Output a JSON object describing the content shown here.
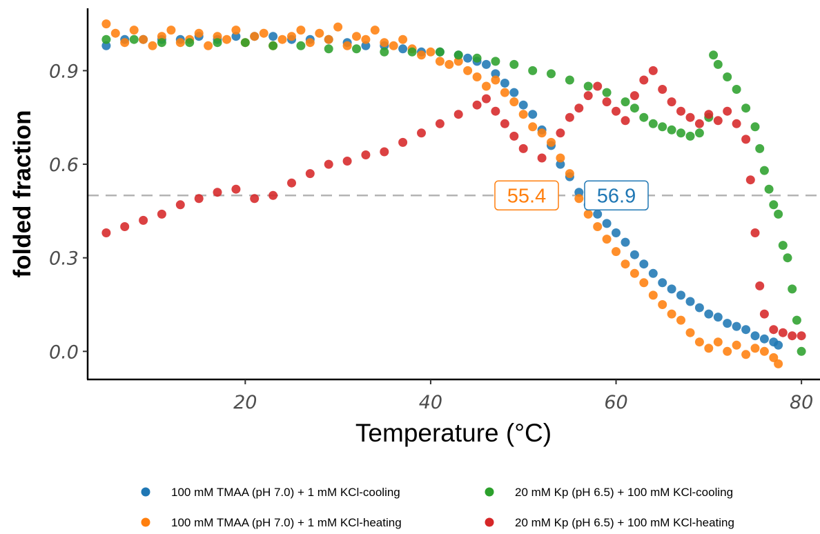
{
  "chart_data": {
    "type": "scatter",
    "xlabel": "Temperature (°C)",
    "ylabel": "folded fraction",
    "xlim": [
      3,
      82
    ],
    "ylim": [
      -0.09,
      1.1
    ],
    "xticks": [
      "20",
      "40",
      "60",
      "80"
    ],
    "yticks": [
      "0.0",
      "0.3",
      "0.6",
      "0.9"
    ],
    "xtick_values": [
      20,
      40,
      60,
      80
    ],
    "ytick_values": [
      0.0,
      0.3,
      0.6,
      0.9
    ],
    "reference_line": {
      "y": 0.5,
      "style": "dashed",
      "color": "#b3b3b3"
    },
    "annotations": [
      {
        "text": "55.4",
        "x": 55.4,
        "y": 0.5,
        "color": "#ff7f0e"
      },
      {
        "text": "56.9",
        "x": 56.9,
        "y": 0.5,
        "color": "#1f77b4"
      }
    ],
    "legend_position": "bottom",
    "series": [
      {
        "name": "100 mM TMAA (pH 7.0) + 1 mM KCl-cooling",
        "color": "#1f77b4",
        "points": [
          [
            5,
            0.98
          ],
          [
            7,
            1.0
          ],
          [
            9,
            1.0
          ],
          [
            11,
            1.0
          ],
          [
            13,
            1.0
          ],
          [
            15,
            1.01
          ],
          [
            17,
            1.0
          ],
          [
            19,
            1.01
          ],
          [
            21,
            1.01
          ],
          [
            23,
            1.01
          ],
          [
            25,
            1.0
          ],
          [
            27,
            1.0
          ],
          [
            29,
            1.0
          ],
          [
            31,
            0.99
          ],
          [
            33,
            0.98
          ],
          [
            35,
            0.98
          ],
          [
            37,
            0.97
          ],
          [
            39,
            0.96
          ],
          [
            41,
            0.96
          ],
          [
            43,
            0.95
          ],
          [
            44,
            0.94
          ],
          [
            45,
            0.93
          ],
          [
            46,
            0.92
          ],
          [
            47,
            0.89
          ],
          [
            48,
            0.86
          ],
          [
            49,
            0.83
          ],
          [
            50,
            0.79
          ],
          [
            51,
            0.76
          ],
          [
            52,
            0.71
          ],
          [
            53,
            0.66
          ],
          [
            54,
            0.6
          ],
          [
            55,
            0.56
          ],
          [
            56,
            0.51
          ],
          [
            57,
            0.47
          ],
          [
            58,
            0.44
          ],
          [
            59,
            0.41
          ],
          [
            60,
            0.38
          ],
          [
            61,
            0.35
          ],
          [
            62,
            0.31
          ],
          [
            63,
            0.28
          ],
          [
            64,
            0.25
          ],
          [
            65,
            0.22
          ],
          [
            66,
            0.2
          ],
          [
            67,
            0.18
          ],
          [
            68,
            0.16
          ],
          [
            69,
            0.14
          ],
          [
            70,
            0.12
          ],
          [
            71,
            0.11
          ],
          [
            72,
            0.09
          ],
          [
            73,
            0.08
          ],
          [
            74,
            0.07
          ],
          [
            75,
            0.05
          ],
          [
            76,
            0.04
          ],
          [
            77,
            0.03
          ],
          [
            77.5,
            0.02
          ]
        ]
      },
      {
        "name": "100 mM TMAA (pH 7.0) + 1 mM KCl-heating",
        "color": "#ff7f0e",
        "points": [
          [
            5,
            1.05
          ],
          [
            6,
            1.02
          ],
          [
            7,
            0.99
          ],
          [
            8,
            1.03
          ],
          [
            9,
            1.0
          ],
          [
            10,
            0.98
          ],
          [
            11,
            1.01
          ],
          [
            12,
            1.03
          ],
          [
            13,
            0.99
          ],
          [
            14,
            1.0
          ],
          [
            15,
            1.02
          ],
          [
            16,
            0.98
          ],
          [
            17,
            1.01
          ],
          [
            18,
            1.0
          ],
          [
            19,
            1.03
          ],
          [
            20,
            0.99
          ],
          [
            21,
            1.01
          ],
          [
            22,
            1.02
          ],
          [
            23,
            0.98
          ],
          [
            24,
            1.0
          ],
          [
            25,
            1.01
          ],
          [
            26,
            1.03
          ],
          [
            27,
            0.99
          ],
          [
            28,
            1.02
          ],
          [
            29,
            1.0
          ],
          [
            30,
            1.04
          ],
          [
            31,
            0.98
          ],
          [
            32,
            1.01
          ],
          [
            33,
            1.0
          ],
          [
            34,
            1.03
          ],
          [
            35,
            0.99
          ],
          [
            36,
            0.98
          ],
          [
            37,
            1.0
          ],
          [
            38,
            0.97
          ],
          [
            39,
            0.95
          ],
          [
            40,
            0.96
          ],
          [
            41,
            0.93
          ],
          [
            42,
            0.92
          ],
          [
            43,
            0.93
          ],
          [
            44,
            0.9
          ],
          [
            45,
            0.88
          ],
          [
            46,
            0.85
          ],
          [
            47,
            0.87
          ],
          [
            48,
            0.83
          ],
          [
            49,
            0.8
          ],
          [
            50,
            0.76
          ],
          [
            51,
            0.72
          ],
          [
            52,
            0.7
          ],
          [
            53,
            0.67
          ],
          [
            54,
            0.62
          ],
          [
            55,
            0.57
          ],
          [
            56,
            0.49
          ],
          [
            57,
            0.44
          ],
          [
            58,
            0.4
          ],
          [
            59,
            0.36
          ],
          [
            60,
            0.32
          ],
          [
            61,
            0.28
          ],
          [
            62,
            0.25
          ],
          [
            63,
            0.22
          ],
          [
            64,
            0.18
          ],
          [
            65,
            0.15
          ],
          [
            66,
            0.12
          ],
          [
            67,
            0.1
          ],
          [
            68,
            0.06
          ],
          [
            69,
            0.03
          ],
          [
            70,
            0.01
          ],
          [
            71,
            0.03
          ],
          [
            72,
            0.0
          ],
          [
            73,
            0.02
          ],
          [
            74,
            -0.01
          ],
          [
            75,
            0.01
          ],
          [
            76,
            0.0
          ],
          [
            77,
            -0.02
          ],
          [
            77.5,
            -0.04
          ]
        ]
      },
      {
        "name": "20 mM Kp (pH 6.5) + 100 mM KCl-cooling",
        "color": "#2ca02c",
        "points": [
          [
            5,
            1.0
          ],
          [
            8,
            1.0
          ],
          [
            11,
            0.99
          ],
          [
            14,
            0.99
          ],
          [
            17,
            0.99
          ],
          [
            20,
            0.99
          ],
          [
            23,
            0.98
          ],
          [
            26,
            0.98
          ],
          [
            29,
            0.97
          ],
          [
            32,
            0.97
          ],
          [
            35,
            0.96
          ],
          [
            38,
            0.96
          ],
          [
            41,
            0.96
          ],
          [
            43,
            0.95
          ],
          [
            45,
            0.94
          ],
          [
            47,
            0.93
          ],
          [
            49,
            0.92
          ],
          [
            51,
            0.9
          ],
          [
            53,
            0.89
          ],
          [
            55,
            0.87
          ],
          [
            57,
            0.85
          ],
          [
            59,
            0.83
          ],
          [
            61,
            0.8
          ],
          [
            62,
            0.78
          ],
          [
            63,
            0.75
          ],
          [
            64,
            0.73
          ],
          [
            65,
            0.72
          ],
          [
            66,
            0.71
          ],
          [
            67,
            0.7
          ],
          [
            68,
            0.69
          ],
          [
            69,
            0.7
          ],
          [
            70,
            0.75
          ],
          [
            70.5,
            0.95
          ],
          [
            71,
            0.92
          ],
          [
            72,
            0.88
          ],
          [
            73,
            0.84
          ],
          [
            74,
            0.78
          ],
          [
            75,
            0.72
          ],
          [
            75.5,
            0.65
          ],
          [
            76,
            0.58
          ],
          [
            76.5,
            0.52
          ],
          [
            77,
            0.47
          ],
          [
            77.5,
            0.44
          ],
          [
            78,
            0.34
          ],
          [
            78.5,
            0.3
          ],
          [
            79,
            0.2
          ],
          [
            79.5,
            0.1
          ],
          [
            80,
            0.0
          ]
        ]
      },
      {
        "name": "20 mM Kp (pH 6.5) + 100 mM KCl-heating",
        "color": "#d62728",
        "points": [
          [
            5,
            0.38
          ],
          [
            7,
            0.4
          ],
          [
            9,
            0.42
          ],
          [
            11,
            0.44
          ],
          [
            13,
            0.47
          ],
          [
            15,
            0.49
          ],
          [
            17,
            0.51
          ],
          [
            19,
            0.52
          ],
          [
            21,
            0.49
          ],
          [
            23,
            0.5
          ],
          [
            25,
            0.54
          ],
          [
            27,
            0.57
          ],
          [
            29,
            0.6
          ],
          [
            31,
            0.61
          ],
          [
            33,
            0.63
          ],
          [
            35,
            0.64
          ],
          [
            37,
            0.67
          ],
          [
            39,
            0.7
          ],
          [
            41,
            0.73
          ],
          [
            43,
            0.76
          ],
          [
            45,
            0.79
          ],
          [
            46,
            0.81
          ],
          [
            47,
            0.77
          ],
          [
            48,
            0.73
          ],
          [
            49,
            0.69
          ],
          [
            50,
            0.65
          ],
          [
            52,
            0.62
          ],
          [
            54,
            0.7
          ],
          [
            55,
            0.75
          ],
          [
            56,
            0.78
          ],
          [
            57,
            0.82
          ],
          [
            58,
            0.85
          ],
          [
            59,
            0.8
          ],
          [
            60,
            0.77
          ],
          [
            61,
            0.74
          ],
          [
            62,
            0.82
          ],
          [
            63,
            0.87
          ],
          [
            64,
            0.9
          ],
          [
            65,
            0.84
          ],
          [
            66,
            0.8
          ],
          [
            67,
            0.77
          ],
          [
            68,
            0.75
          ],
          [
            69,
            0.73
          ],
          [
            70,
            0.76
          ],
          [
            71,
            0.74
          ],
          [
            72,
            0.77
          ],
          [
            73,
            0.73
          ],
          [
            74,
            0.68
          ],
          [
            74.5,
            0.55
          ],
          [
            75,
            0.38
          ],
          [
            75.5,
            0.21
          ],
          [
            76,
            0.12
          ],
          [
            77,
            0.07
          ],
          [
            78,
            0.06
          ],
          [
            79,
            0.05
          ],
          [
            80,
            0.05
          ]
        ]
      }
    ]
  }
}
